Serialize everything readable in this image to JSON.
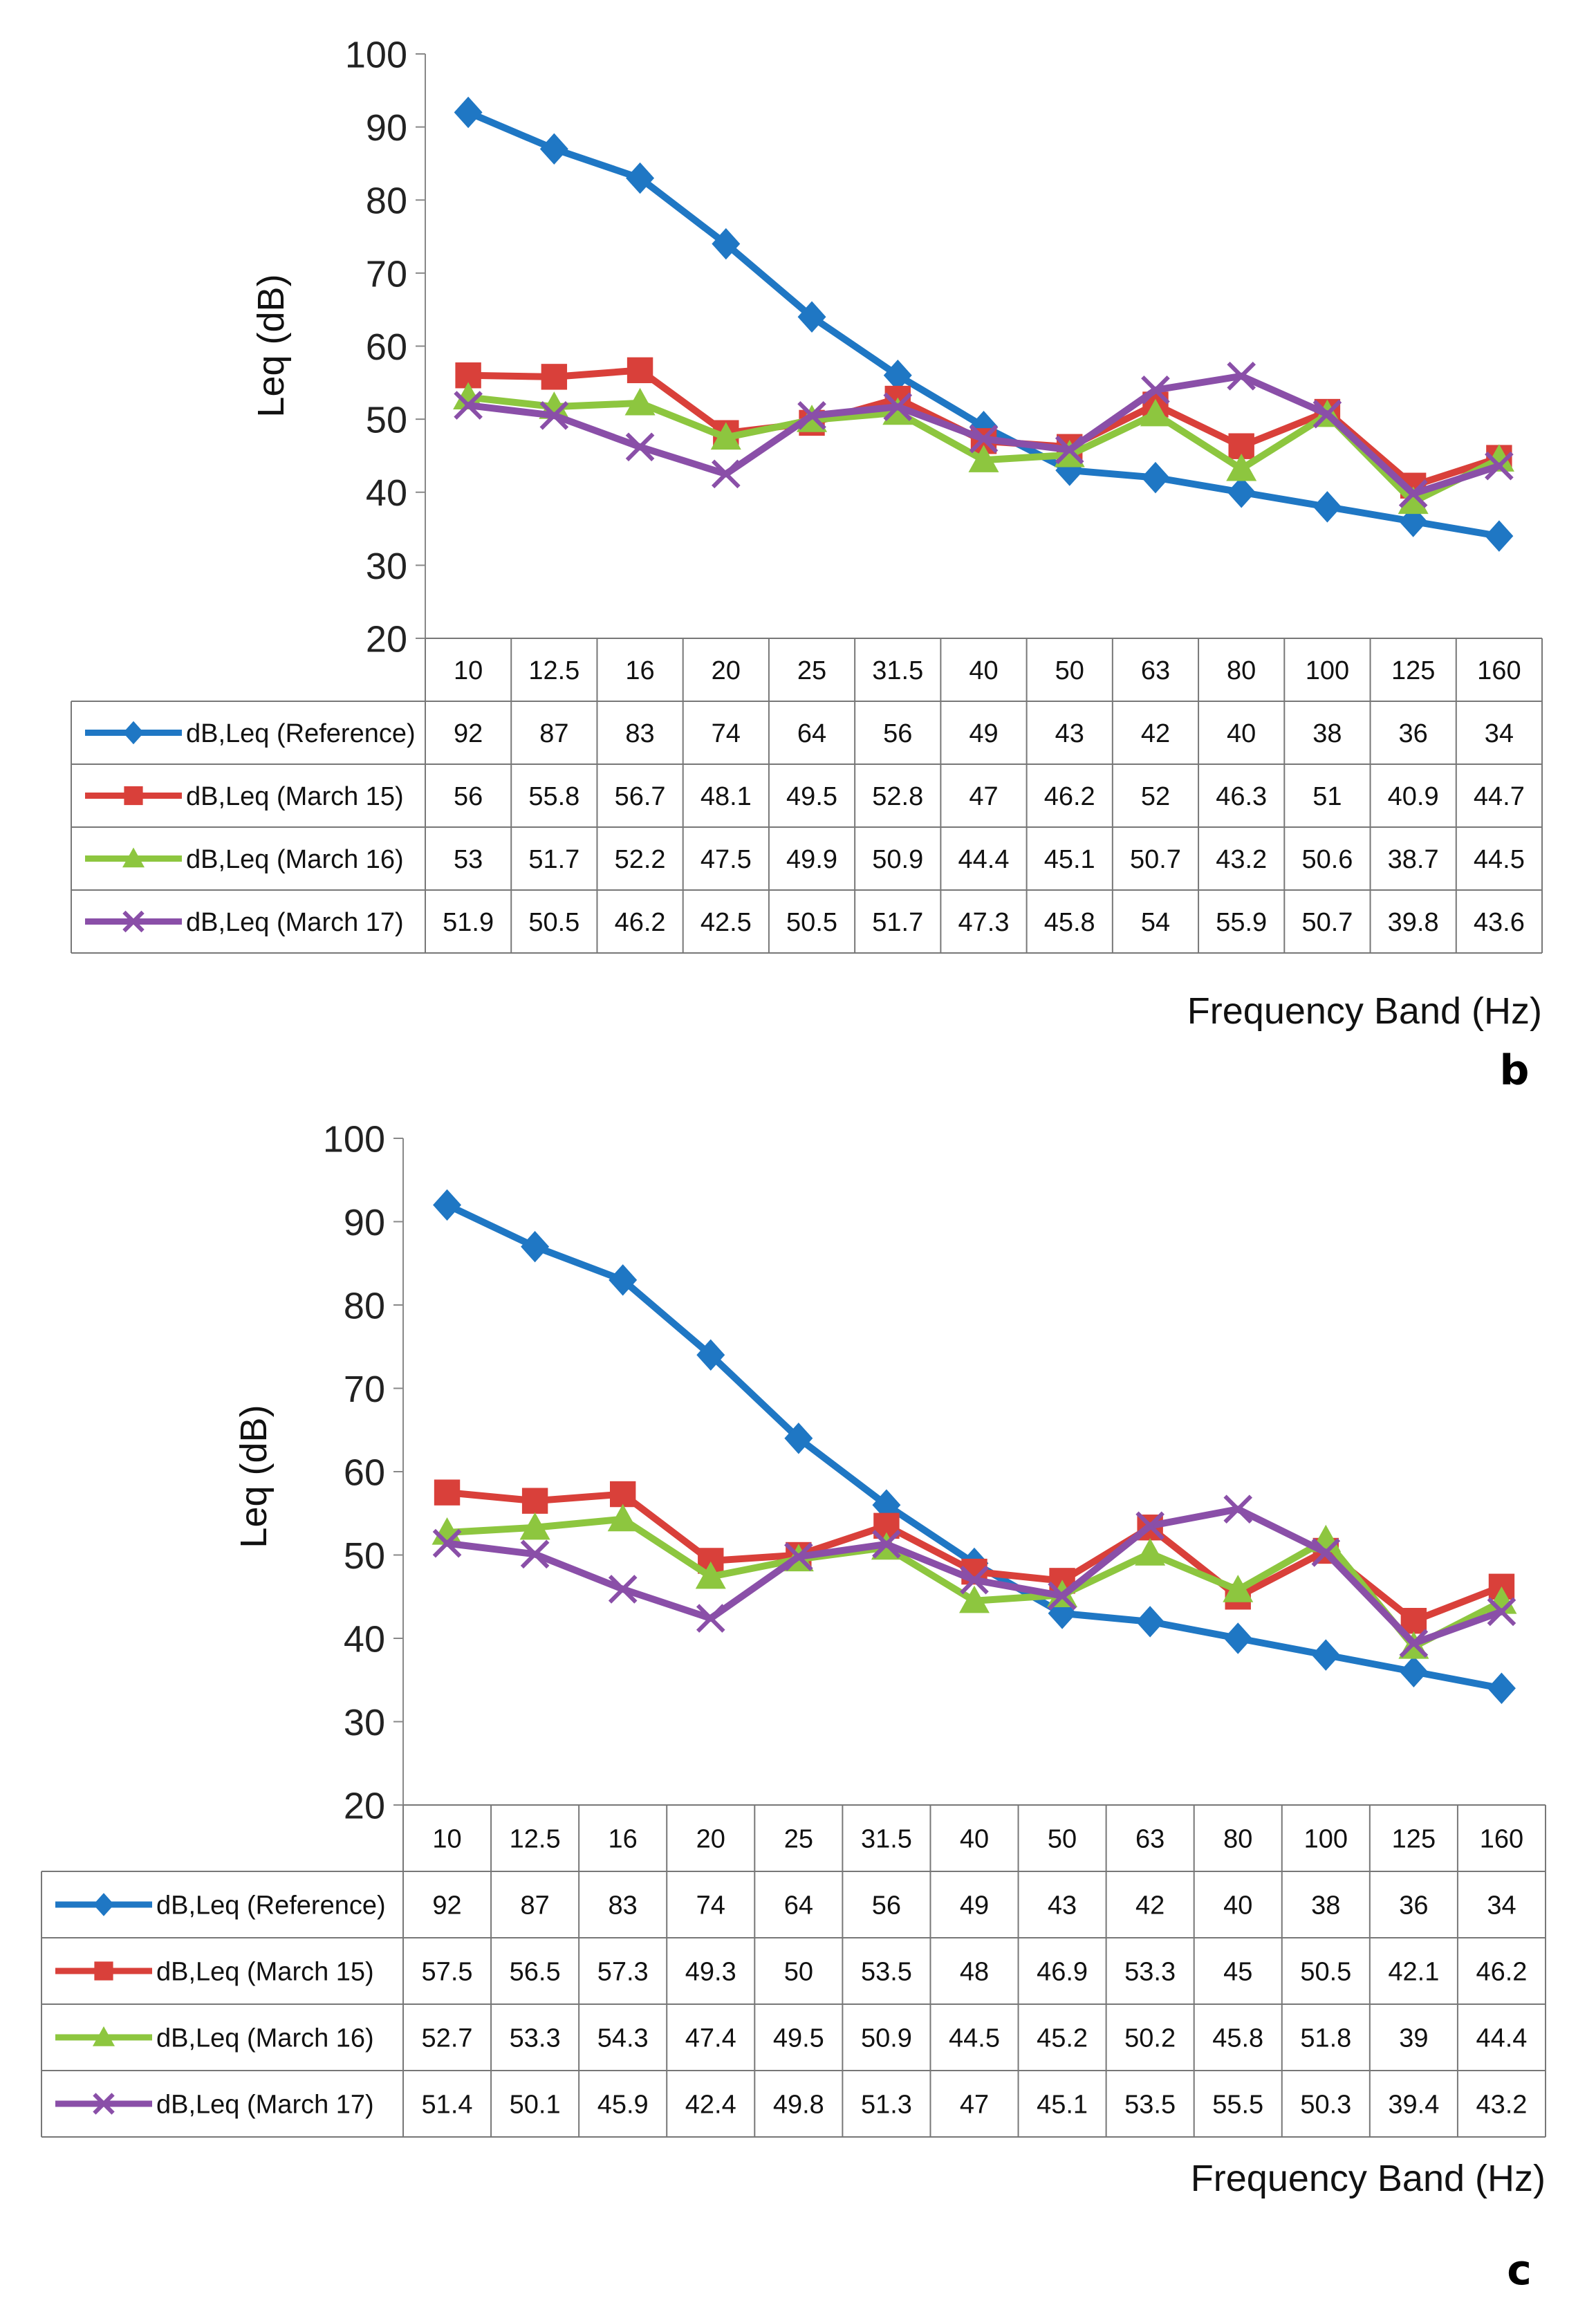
{
  "chart_data": [
    {
      "type": "line",
      "panel_label": "b",
      "ylabel": "Leq (dB)",
      "xlabel": "Frequency Band (Hz)",
      "ylim": [
        20,
        100
      ],
      "yticks": [
        "20",
        "30",
        "40",
        "50",
        "60",
        "70",
        "80",
        "90",
        "100"
      ],
      "categories": [
        "10",
        "12.5",
        "16",
        "20",
        "25",
        "31.5",
        "40",
        "50",
        "63",
        "80",
        "100",
        "125",
        "160"
      ],
      "series": [
        {
          "name": "dB,Leq (Reference)",
          "color": "#1f77c4",
          "marker": "diamond",
          "values": [
            92,
            87,
            83,
            74,
            64,
            56,
            49,
            43,
            42,
            40,
            38,
            36,
            34
          ],
          "labels": [
            "92",
            "87",
            "83",
            "74",
            "64",
            "56",
            "49",
            "43",
            "42",
            "40",
            "38",
            "36",
            "34"
          ]
        },
        {
          "name": "dB,Leq (March 15)",
          "color": "#d9403a",
          "marker": "square",
          "values": [
            56,
            55.8,
            56.7,
            48.1,
            49.5,
            52.8,
            47,
            46.2,
            52,
            46.3,
            51,
            40.9,
            44.7
          ],
          "labels": [
            "56",
            "55.8",
            "56.7",
            "48.1",
            "49.5",
            "52.8",
            "47",
            "46.2",
            "52",
            "46.3",
            "51",
            "40.9",
            "44.7"
          ]
        },
        {
          "name": "dB,Leq (March 16)",
          "color": "#8dc63f",
          "marker": "triangle",
          "values": [
            53,
            51.7,
            52.2,
            47.5,
            49.9,
            50.9,
            44.4,
            45.1,
            50.7,
            43.2,
            50.6,
            38.7,
            44.5
          ],
          "labels": [
            "53",
            "51.7",
            "52.2",
            "47.5",
            "49.9",
            "50.9",
            "44.4",
            "45.1",
            "50.7",
            "43.2",
            "50.6",
            "38.7",
            "44.5"
          ]
        },
        {
          "name": "dB,Leq (March 17)",
          "color": "#8a4fa8",
          "marker": "x",
          "values": [
            51.9,
            50.5,
            46.2,
            42.5,
            50.5,
            51.7,
            47.3,
            45.8,
            54,
            55.9,
            50.7,
            39.8,
            43.6
          ],
          "labels": [
            "51.9",
            "50.5",
            "46.2",
            "42.5",
            "50.5",
            "51.7",
            "47.3",
            "45.8",
            "54",
            "55.9",
            "50.7",
            "39.8",
            "43.6"
          ]
        }
      ]
    },
    {
      "type": "line",
      "panel_label": "c",
      "ylabel": "Leq (dB)",
      "xlabel": "Frequency Band (Hz)",
      "ylim": [
        20,
        100
      ],
      "yticks": [
        "20",
        "30",
        "40",
        "50",
        "60",
        "70",
        "80",
        "90",
        "100"
      ],
      "categories": [
        "10",
        "12.5",
        "16",
        "20",
        "25",
        "31.5",
        "40",
        "50",
        "63",
        "80",
        "100",
        "125",
        "160"
      ],
      "series": [
        {
          "name": "dB,Leq (Reference)",
          "color": "#1f77c4",
          "marker": "diamond",
          "values": [
            92,
            87,
            83,
            74,
            64,
            56,
            49,
            43,
            42,
            40,
            38,
            36,
            34
          ],
          "labels": [
            "92",
            "87",
            "83",
            "74",
            "64",
            "56",
            "49",
            "43",
            "42",
            "40",
            "38",
            "36",
            "34"
          ]
        },
        {
          "name": "dB,Leq (March 15)",
          "color": "#d9403a",
          "marker": "square",
          "values": [
            57.5,
            56.5,
            57.3,
            49.3,
            50,
            53.5,
            48,
            46.9,
            53.3,
            45,
            50.5,
            42.1,
            46.2
          ],
          "labels": [
            "57.5",
            "56.5",
            "57.3",
            "49.3",
            "50",
            "53.5",
            "48",
            "46.9",
            "53.3",
            "45",
            "50.5",
            "42.1",
            "46.2"
          ]
        },
        {
          "name": "dB,Leq (March 16)",
          "color": "#8dc63f",
          "marker": "triangle",
          "values": [
            52.7,
            53.3,
            54.3,
            47.4,
            49.5,
            50.9,
            44.5,
            45.2,
            50.2,
            45.8,
            51.8,
            39,
            44.4
          ],
          "labels": [
            "52.7",
            "53.3",
            "54.3",
            "47.4",
            "49.5",
            "50.9",
            "44.5",
            "45.2",
            "50.2",
            "45.8",
            "51.8",
            "39",
            "44.4"
          ]
        },
        {
          "name": "dB,Leq (March 17)",
          "color": "#8a4fa8",
          "marker": "x",
          "values": [
            51.4,
            50.1,
            45.9,
            42.4,
            49.8,
            51.3,
            47,
            45.1,
            53.5,
            55.5,
            50.3,
            39.4,
            43.2
          ],
          "labels": [
            "51.4",
            "50.1",
            "45.9",
            "42.4",
            "49.8",
            "51.3",
            "47",
            "45.1",
            "53.5",
            "55.5",
            "50.3",
            "39.4",
            "43.2"
          ]
        }
      ]
    }
  ]
}
